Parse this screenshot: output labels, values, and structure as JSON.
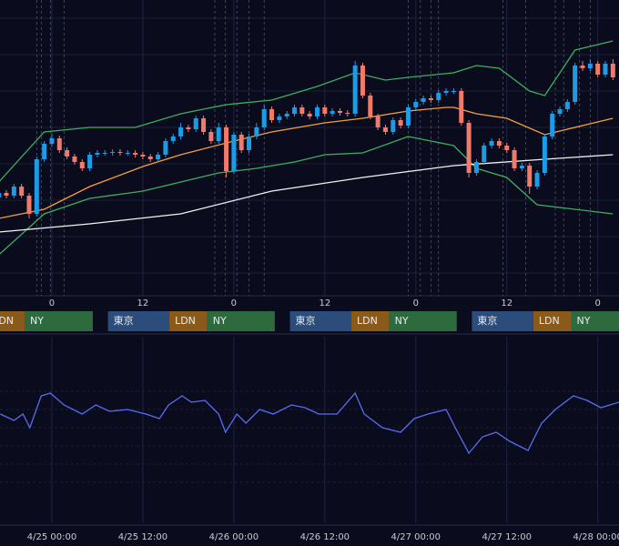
{
  "chart_data": [
    {
      "type": "candlestick",
      "xlim": [
        -6.84,
        74.8
      ],
      "ylim": [
        0,
        325
      ],
      "xticks": [
        0,
        12,
        {
          "value": 24,
          "label": "0"
        },
        {
          "value": 36,
          "label": "12"
        },
        {
          "value": 48,
          "label": "0"
        },
        {
          "value": 60,
          "label": "12"
        },
        {
          "value": 72,
          "label": "0"
        }
      ],
      "ygrid": [
        305,
        265,
        225,
        185,
        145,
        105,
        65,
        25
      ],
      "colors": {
        "up": "#1e9be6",
        "down": "#f07b6b"
      },
      "x": [
        -7,
        -6,
        -5,
        -4,
        -3,
        -2,
        -1,
        0,
        1,
        2,
        3,
        4,
        5,
        6,
        7,
        8,
        9,
        10,
        11,
        12,
        13,
        14,
        15,
        16,
        17,
        18,
        19,
        20,
        21,
        22,
        23,
        24,
        25,
        26,
        27,
        28,
        29,
        30,
        31,
        32,
        33,
        34,
        35,
        36,
        37,
        38,
        39,
        40,
        41,
        42,
        43,
        44,
        45,
        46,
        47,
        48,
        49,
        50,
        51,
        52,
        53,
        54,
        55,
        56,
        57,
        58,
        59,
        60,
        61,
        62,
        63,
        64,
        65,
        66,
        67,
        68,
        69,
        70,
        71,
        72,
        73,
        74
      ],
      "open": [
        108,
        113,
        110,
        120,
        110,
        90,
        150,
        167,
        173,
        160,
        153,
        147,
        140,
        155,
        157,
        157,
        158,
        157,
        157,
        155,
        153,
        150,
        155,
        170,
        175,
        185,
        183,
        195,
        180,
        170,
        185,
        137,
        177,
        160,
        175,
        185,
        205,
        193,
        197,
        200,
        207,
        200,
        197,
        207,
        200,
        203,
        201,
        200,
        253,
        220,
        197,
        185,
        180,
        193,
        187,
        207,
        213,
        217,
        215,
        223,
        225,
        225,
        190,
        135,
        147,
        165,
        170,
        165,
        160,
        140,
        143,
        120,
        135,
        175,
        200,
        205,
        213,
        253,
        250,
        255,
        243,
        255
      ],
      "high": [
        116,
        116,
        123,
        123,
        113,
        153,
        170,
        178,
        176,
        163,
        156,
        150,
        158,
        160,
        160,
        161,
        161,
        160,
        160,
        158,
        156,
        158,
        173,
        178,
        190,
        188,
        198,
        198,
        183,
        190,
        188,
        180,
        180,
        178,
        190,
        210,
        208,
        200,
        203,
        210,
        210,
        203,
        210,
        210,
        206,
        206,
        204,
        258,
        256,
        223,
        200,
        188,
        196,
        196,
        210,
        216,
        220,
        220,
        226,
        228,
        228,
        228,
        193,
        150,
        168,
        173,
        173,
        168,
        163,
        146,
        146,
        138,
        178,
        203,
        208,
        216,
        256,
        258,
        260,
        258,
        258,
        260
      ],
      "low": [
        105,
        107,
        107,
        107,
        85,
        87,
        147,
        164,
        157,
        150,
        144,
        137,
        137,
        152,
        154,
        154,
        154,
        154,
        152,
        150,
        147,
        147,
        152,
        167,
        172,
        180,
        180,
        177,
        167,
        167,
        130,
        134,
        157,
        157,
        172,
        182,
        190,
        190,
        194,
        197,
        197,
        194,
        194,
        197,
        197,
        198,
        197,
        197,
        217,
        194,
        182,
        177,
        177,
        184,
        184,
        204,
        210,
        212,
        212,
        220,
        222,
        187,
        130,
        132,
        144,
        162,
        162,
        157,
        137,
        137,
        112,
        117,
        132,
        172,
        197,
        202,
        210,
        247,
        247,
        240,
        240,
        237
      ],
      "close": [
        113,
        110,
        120,
        110,
        90,
        150,
        167,
        173,
        160,
        153,
        147,
        140,
        155,
        157,
        157,
        158,
        157,
        157,
        155,
        153,
        150,
        155,
        170,
        175,
        185,
        183,
        195,
        180,
        170,
        185,
        137,
        177,
        160,
        175,
        185,
        205,
        193,
        197,
        200,
        207,
        200,
        197,
        207,
        200,
        203,
        201,
        200,
        253,
        220,
        197,
        185,
        180,
        193,
        187,
        207,
        213,
        217,
        215,
        223,
        225,
        225,
        190,
        135,
        147,
        165,
        170,
        165,
        160,
        140,
        143,
        120,
        135,
        175,
        200,
        205,
        213,
        253,
        250,
        255,
        243,
        255,
        240
      ],
      "lines": [
        {
          "color": "#3fae5e",
          "x": [
            -7,
            -1,
            5,
            11,
            17,
            23,
            29,
            35,
            40,
            44,
            47,
            53,
            56,
            59,
            63,
            65,
            69,
            74
          ],
          "values": [
            125,
            180,
            185,
            185,
            200,
            210,
            215,
            230,
            245,
            237,
            240,
            245,
            253,
            250,
            225,
            220,
            270,
            280
          ]
        },
        {
          "color": "#3fae5e",
          "x": [
            -7,
            -1,
            5,
            12,
            17,
            22,
            27,
            32,
            36,
            41,
            47,
            53,
            56,
            60,
            64,
            69,
            74
          ],
          "values": [
            45,
            90,
            107,
            115,
            125,
            135,
            140,
            147,
            155,
            157,
            175,
            165,
            140,
            130,
            100,
            95,
            90
          ]
        },
        {
          "color": "#f5a13a",
          "x": [
            -7,
            -1,
            5,
            12,
            17,
            24,
            29,
            36,
            41,
            47,
            52,
            53,
            56,
            60,
            65,
            70,
            74
          ],
          "values": [
            85,
            95,
            120,
            142,
            155,
            170,
            180,
            190,
            195,
            203,
            207,
            207,
            200,
            195,
            177,
            187,
            195
          ]
        },
        {
          "color": "#f2f2f2",
          "x": [
            -7,
            5,
            17,
            29,
            41,
            53,
            65,
            74
          ],
          "values": [
            70,
            79,
            90,
            115,
            130,
            143,
            150,
            155
          ]
        }
      ],
      "event_lines": [
        -2,
        -1.4,
        -0.2,
        1.6,
        21.5,
        22.9,
        24.4,
        26,
        28,
        47,
        48.6,
        50,
        51,
        59.5,
        62.5,
        66.4,
        67.5,
        69.6,
        71
      ],
      "sessions": [
        {
          "label": "LDN",
          "color": "#8a5a1a",
          "start": -8.5,
          "end": -3.6
        },
        {
          "label": "NY",
          "color": "#2d6a3e",
          "start": -3.6,
          "end": 5.4
        },
        {
          "label": "東京",
          "color": "#2a4d7c",
          "start": 7.4,
          "end": 15.5
        },
        {
          "label": "LDN",
          "color": "#8a5a1a",
          "start": 15.5,
          "end": 20.5
        },
        {
          "label": "NY",
          "color": "#2d6a3e",
          "start": 20.5,
          "end": 29.4
        },
        {
          "label": "東京",
          "color": "#2a4d7c",
          "start": 31.4,
          "end": 39.5
        },
        {
          "label": "LDN",
          "color": "#8a5a1a",
          "start": 39.5,
          "end": 44.5
        },
        {
          "label": "NY",
          "color": "#2d6a3e",
          "start": 44.5,
          "end": 53.4
        },
        {
          "label": "東京",
          "color": "#2a4d7c",
          "start": 55.4,
          "end": 63.5
        },
        {
          "label": "LDN",
          "color": "#8a5a1a",
          "start": 63.5,
          "end": 68.5
        },
        {
          "label": "NY",
          "color": "#2d6a3e",
          "start": 68.5,
          "end": 77.4
        }
      ]
    },
    {
      "type": "line",
      "xlim": [
        -6.84,
        74.8
      ],
      "ylim": [
        0,
        205
      ],
      "xticks": [
        {
          "value": 0,
          "label": "4/25 00:00"
        },
        {
          "value": 12,
          "label": "4/25 12:00"
        },
        {
          "value": 24,
          "label": "4/26 00:00"
        },
        {
          "value": 36,
          "label": "4/26 12:00"
        },
        {
          "value": 48,
          "label": "4/27 00:00"
        },
        {
          "value": 60,
          "label": "4/27 12:00"
        },
        {
          "value": 72,
          "label": "4/28 00:00"
        }
      ],
      "ygrid": [
        145,
        125,
        105,
        85,
        65,
        45
      ],
      "color": "#5a6cf0",
      "x": [
        -6.8,
        -5,
        -3.8,
        -2.9,
        -1.4,
        -0.2,
        1.6,
        4,
        5.8,
        7.6,
        10,
        12.4,
        14.2,
        15.4,
        17.2,
        18.4,
        20.2,
        22,
        22.9,
        24.4,
        25.6,
        27.4,
        29.2,
        31.6,
        33.4,
        35.2,
        37.6,
        40,
        41.2,
        43.6,
        46,
        47.8,
        49.6,
        52,
        53.2,
        55,
        56.8,
        58.6,
        60.4,
        62.8,
        64.6,
        66.4,
        68.8,
        70.6,
        72.4,
        74.8
      ],
      "values": [
        120,
        113,
        120,
        105,
        140,
        143,
        130,
        120,
        130,
        123,
        125,
        120,
        115,
        130,
        140,
        133,
        135,
        120,
        100,
        120,
        110,
        125,
        120,
        130,
        127,
        120,
        120,
        143,
        120,
        105,
        100,
        115,
        120,
        125,
        105,
        77,
        95,
        100,
        90,
        80,
        110,
        125,
        140,
        135,
        127,
        133
      ]
    }
  ]
}
